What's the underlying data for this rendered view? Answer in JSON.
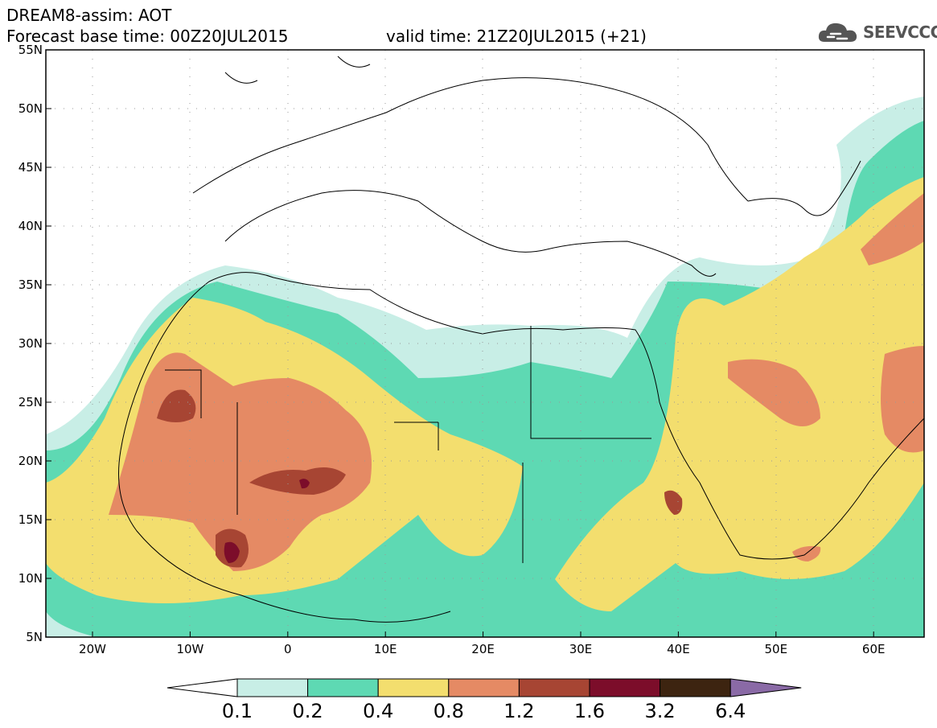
{
  "header": {
    "line1": "DREAM8-assim: AOT",
    "base_time": "Forecast base time: 00Z20JUL2015",
    "valid_time": "valid time: 21Z20JUL2015 (+21)",
    "logo_text": "SEEVCCC"
  },
  "axes": {
    "lat_labels": [
      "55N",
      "50N",
      "45N",
      "40N",
      "35N",
      "30N",
      "25N",
      "20N",
      "15N",
      "10N",
      "5N"
    ],
    "lon_labels": [
      "20W",
      "10W",
      "0",
      "10E",
      "20E",
      "30E",
      "40E",
      "50E",
      "60E"
    ]
  },
  "colorbar": {
    "labels": [
      "0.1",
      "0.2",
      "0.4",
      "0.8",
      "1.2",
      "1.6",
      "3.2",
      "6.4"
    ],
    "colors": [
      "#ffffff",
      "#c8eee6",
      "#5ed9b3",
      "#f3de6e",
      "#e58a64",
      "#a74533",
      "#7c0d2a",
      "#3d2410",
      "#8a6aa6"
    ]
  }
}
